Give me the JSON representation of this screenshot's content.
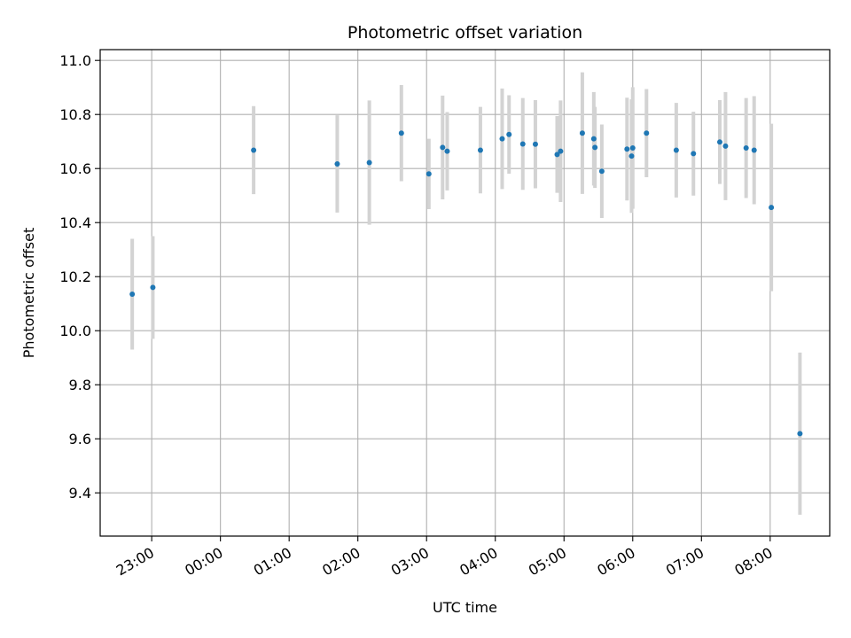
{
  "chart_data": {
    "type": "scatter",
    "title": "Photometric offset variation",
    "xlabel": "UTC time",
    "ylabel": "Photometric offset",
    "x_axis_kind": "time (hours, UTC)",
    "xlim": [
      "22:15",
      "08:52"
    ],
    "ylim": [
      9.24,
      11.04
    ],
    "x_ticks": [
      "23:00",
      "00:00",
      "01:00",
      "02:00",
      "03:00",
      "04:00",
      "05:00",
      "06:00",
      "07:00",
      "08:00"
    ],
    "y_ticks": [
      "9.4",
      "9.6",
      "9.8",
      "10.0",
      "10.2",
      "10.4",
      "10.6",
      "10.8",
      "11.0"
    ],
    "grid": true,
    "legend": "none",
    "point_color": "#1f77b4",
    "errorbar_color": "#d3d3d3",
    "points": [
      {
        "x": "22:43",
        "y": 10.135,
        "err": 0.205
      },
      {
        "x": "23:01",
        "y": 10.16,
        "err": 0.19
      },
      {
        "x": "00:29",
        "y": 10.668,
        "err": 0.163
      },
      {
        "x": "01:42",
        "y": 10.617,
        "err": 0.18
      },
      {
        "x": "02:10",
        "y": 10.622,
        "err": 0.23
      },
      {
        "x": "02:38",
        "y": 10.731,
        "err": 0.178
      },
      {
        "x": "03:02",
        "y": 10.58,
        "err": 0.13
      },
      {
        "x": "03:14",
        "y": 10.678,
        "err": 0.192
      },
      {
        "x": "03:18",
        "y": 10.664,
        "err": 0.145
      },
      {
        "x": "03:47",
        "y": 10.668,
        "err": 0.16
      },
      {
        "x": "04:06",
        "y": 10.71,
        "err": 0.186
      },
      {
        "x": "04:12",
        "y": 10.726,
        "err": 0.145
      },
      {
        "x": "04:24",
        "y": 10.691,
        "err": 0.17
      },
      {
        "x": "04:35",
        "y": 10.69,
        "err": 0.163
      },
      {
        "x": "04:54",
        "y": 10.652,
        "err": 0.142
      },
      {
        "x": "04:57",
        "y": 10.664,
        "err": 0.188
      },
      {
        "x": "05:16",
        "y": 10.731,
        "err": 0.225
      },
      {
        "x": "05:26",
        "y": 10.71,
        "err": 0.173
      },
      {
        "x": "05:27",
        "y": 10.678,
        "err": 0.15
      },
      {
        "x": "05:33",
        "y": 10.59,
        "err": 0.173
      },
      {
        "x": "05:55",
        "y": 10.672,
        "err": 0.19
      },
      {
        "x": "05:59",
        "y": 10.646,
        "err": 0.21
      },
      {
        "x": "06:00",
        "y": 10.676,
        "err": 0.225
      },
      {
        "x": "06:12",
        "y": 10.731,
        "err": 0.163
      },
      {
        "x": "06:38",
        "y": 10.668,
        "err": 0.175
      },
      {
        "x": "06:53",
        "y": 10.655,
        "err": 0.155
      },
      {
        "x": "07:16",
        "y": 10.698,
        "err": 0.155
      },
      {
        "x": "07:21",
        "y": 10.683,
        "err": 0.2
      },
      {
        "x": "07:39",
        "y": 10.676,
        "err": 0.185
      },
      {
        "x": "07:46",
        "y": 10.668,
        "err": 0.2
      },
      {
        "x": "08:01",
        "y": 10.456,
        "err": 0.31
      },
      {
        "x": "08:26",
        "y": 9.619,
        "err": 0.3
      }
    ]
  }
}
